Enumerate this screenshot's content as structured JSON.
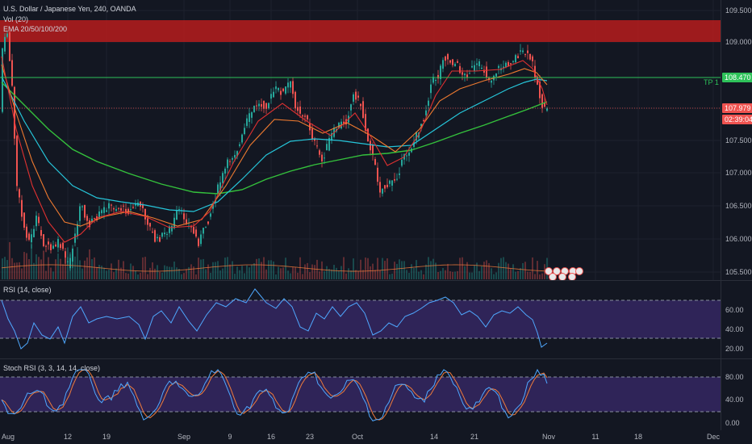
{
  "header": {
    "symbol_line": "U.S. Dollar / Japanese Yen, 240, OANDA",
    "vol_label": "Vol (20)",
    "ema_label": "EMA 20/50/100/200"
  },
  "price_axis": {
    "ticks": [
      "109.500",
      "109.000",
      "108.500",
      "108.000",
      "107.500",
      "107.000",
      "106.500",
      "106.000",
      "105.500"
    ],
    "tp_label": "108.470",
    "last_price": "107.979",
    "countdown": "02:39:04",
    "tp_text": "TP 1"
  },
  "rsi_pane": {
    "label": "RSI (14, close)",
    "ticks": [
      "60.00",
      "40.00",
      "20.00"
    ]
  },
  "stoch_pane": {
    "label": "Stoch RSI (3, 3, 14, 14, close)",
    "ticks": [
      "80.00",
      "40.00",
      "0.00"
    ]
  },
  "time_axis": {
    "labels": [
      "Aug",
      "12",
      "19",
      "Sep",
      "9",
      "16",
      "23",
      "Oct",
      "14",
      "21",
      "Nov",
      "11",
      "18",
      "Dec"
    ]
  },
  "colors": {
    "background": "#131722",
    "up": "#26a69a",
    "down": "#ef5350",
    "resistance_zone": "#c81e1e",
    "tp_line": "#2ec25a",
    "last_price": "#ef5350",
    "ema20": "#e03131",
    "ema50": "#ee7a30",
    "ema100": "#26c6da",
    "ema200": "#34c13c",
    "rsi_line": "#4fa8ff",
    "pane_fill": "#3a2a6b",
    "stoch_k": "#4fa8ff",
    "stoch_d": "#ef7b3b"
  }
}
